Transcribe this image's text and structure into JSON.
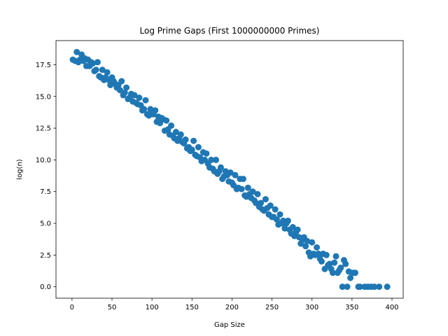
{
  "chart_data": {
    "type": "scatter",
    "title": "Log Prime Gaps (First 1000000000 Primes)",
    "xlabel": "Gap Size",
    "ylabel": "log(n)",
    "xlim": [
      -20,
      414
    ],
    "ylim": [
      -0.9,
      19.4
    ],
    "xticks": [
      0,
      50,
      100,
      150,
      200,
      250,
      300,
      350,
      400
    ],
    "yticks": [
      0.0,
      2.5,
      5.0,
      7.5,
      10.0,
      12.5,
      15.0,
      17.5
    ],
    "xtick_labels": [
      "0",
      "50",
      "100",
      "150",
      "200",
      "250",
      "300",
      "350",
      "400"
    ],
    "ytick_labels": [
      "0.0",
      "2.5",
      "5.0",
      "7.5",
      "10.0",
      "12.5",
      "15.0",
      "17.5"
    ],
    "grid": false,
    "marker_color": "#1f77b4",
    "points": [
      [
        1,
        17.9
      ],
      [
        4,
        17.8
      ],
      [
        6,
        18.5
      ],
      [
        8,
        17.7
      ],
      [
        10,
        17.9
      ],
      [
        12,
        18.3
      ],
      [
        14,
        17.8
      ],
      [
        16,
        18.0
      ],
      [
        18,
        17.4
      ],
      [
        20,
        17.9
      ],
      [
        22,
        17.4
      ],
      [
        24,
        17.7
      ],
      [
        26,
        17.6
      ],
      [
        28,
        17.0
      ],
      [
        30,
        17.1
      ],
      [
        32,
        17.7
      ],
      [
        34,
        16.6
      ],
      [
        36,
        16.5
      ],
      [
        38,
        17.1
      ],
      [
        40,
        16.3
      ],
      [
        42,
        16.5
      ],
      [
        44,
        16.9
      ],
      [
        46,
        16.3
      ],
      [
        48,
        15.9
      ],
      [
        50,
        16.5
      ],
      [
        52,
        16.2
      ],
      [
        54,
        16.0
      ],
      [
        56,
        15.7
      ],
      [
        58,
        15.9
      ],
      [
        60,
        15.5
      ],
      [
        62,
        16.2
      ],
      [
        64,
        15.1
      ],
      [
        66,
        15.3
      ],
      [
        68,
        15.7
      ],
      [
        70,
        14.8
      ],
      [
        72,
        14.9
      ],
      [
        74,
        15.2
      ],
      [
        76,
        14.6
      ],
      [
        78,
        15.1
      ],
      [
        80,
        14.5
      ],
      [
        82,
        14.4
      ],
      [
        84,
        14.9
      ],
      [
        86,
        14.3
      ],
      [
        88,
        13.9
      ],
      [
        90,
        14.0
      ],
      [
        92,
        14.7
      ],
      [
        94,
        13.6
      ],
      [
        96,
        13.5
      ],
      [
        98,
        14.0
      ],
      [
        100,
        13.6
      ],
      [
        102,
        13.6
      ],
      [
        104,
        13.9
      ],
      [
        106,
        13.0
      ],
      [
        108,
        13.4
      ],
      [
        110,
        12.9
      ],
      [
        112,
        13.3
      ],
      [
        114,
        13.2
      ],
      [
        116,
        12.3
      ],
      [
        118,
        13.1
      ],
      [
        120,
        12.4
      ],
      [
        122,
        12.0
      ],
      [
        124,
        12.7
      ],
      [
        126,
        11.9
      ],
      [
        128,
        11.7
      ],
      [
        130,
        12.2
      ],
      [
        132,
        11.5
      ],
      [
        134,
        11.7
      ],
      [
        136,
        12.0
      ],
      [
        138,
        11.4
      ],
      [
        140,
        11.3
      ],
      [
        142,
        11.6
      ],
      [
        144,
        10.9
      ],
      [
        146,
        11.0
      ],
      [
        148,
        10.7
      ],
      [
        150,
        10.8
      ],
      [
        152,
        11.5
      ],
      [
        154,
        10.4
      ],
      [
        156,
        10.3
      ],
      [
        158,
        11.0
      ],
      [
        160,
        10.2
      ],
      [
        162,
        9.9
      ],
      [
        164,
        10.6
      ],
      [
        166,
        10.0
      ],
      [
        168,
        10.5
      ],
      [
        170,
        9.7
      ],
      [
        172,
        9.4
      ],
      [
        174,
        10.0
      ],
      [
        176,
        9.3
      ],
      [
        178,
        9.1
      ],
      [
        180,
        10.0
      ],
      [
        182,
        8.9
      ],
      [
        184,
        9.1
      ],
      [
        186,
        9.4
      ],
      [
        188,
        8.5
      ],
      [
        190,
        8.7
      ],
      [
        192,
        9.1
      ],
      [
        194,
        8.8
      ],
      [
        196,
        8.3
      ],
      [
        198,
        9.0
      ],
      [
        200,
        8.2
      ],
      [
        202,
        8.0
      ],
      [
        204,
        8.8
      ],
      [
        206,
        7.7
      ],
      [
        208,
        7.8
      ],
      [
        210,
        8.5
      ],
      [
        212,
        7.7
      ],
      [
        214,
        8.5
      ],
      [
        216,
        7.2
      ],
      [
        218,
        7.1
      ],
      [
        220,
        7.8
      ],
      [
        222,
        7.3
      ],
      [
        224,
        7.0
      ],
      [
        226,
        7.5
      ],
      [
        228,
        6.8
      ],
      [
        230,
        6.6
      ],
      [
        232,
        7.3
      ],
      [
        234,
        6.3
      ],
      [
        236,
        6.6
      ],
      [
        238,
        6.1
      ],
      [
        240,
        6.0
      ],
      [
        242,
        6.9
      ],
      [
        244,
        6.2
      ],
      [
        246,
        5.7
      ],
      [
        248,
        6.4
      ],
      [
        250,
        5.5
      ],
      [
        252,
        5.5
      ],
      [
        254,
        6.1
      ],
      [
        256,
        5.3
      ],
      [
        258,
        4.9
      ],
      [
        260,
        5.7
      ],
      [
        262,
        5.0
      ],
      [
        264,
        5.2
      ],
      [
        266,
        4.6
      ],
      [
        268,
        5.0
      ],
      [
        270,
        5.2
      ],
      [
        272,
        4.5
      ],
      [
        274,
        4.2
      ],
      [
        276,
        4.7
      ],
      [
        278,
        4.0
      ],
      [
        280,
        4.3
      ],
      [
        282,
        4.5
      ],
      [
        284,
        3.9
      ],
      [
        286,
        3.4
      ],
      [
        288,
        3.7
      ],
      [
        290,
        3.9
      ],
      [
        292,
        3.2
      ],
      [
        294,
        3.6
      ],
      [
        296,
        2.7
      ],
      [
        298,
        2.4
      ],
      [
        300,
        3.5
      ],
      [
        302,
        2.6
      ],
      [
        304,
        2.5
      ],
      [
        306,
        3.1
      ],
      [
        308,
        2.6
      ],
      [
        310,
        2.2
      ],
      [
        312,
        2.0
      ],
      [
        314,
        2.6
      ],
      [
        316,
        1.4
      ],
      [
        318,
        2.5
      ],
      [
        320,
        1.7
      ],
      [
        322,
        1.8
      ],
      [
        324,
        1.4
      ],
      [
        326,
        1.1
      ],
      [
        328,
        1.9
      ],
      [
        330,
        2.4
      ],
      [
        332,
        1.1
      ],
      [
        334,
        1.3
      ],
      [
        336,
        1.5
      ],
      [
        338,
        0.0
      ],
      [
        340,
        2.1
      ],
      [
        342,
        1.8
      ],
      [
        344,
        0.0
      ],
      [
        346,
        1.2
      ],
      [
        348,
        0.7
      ],
      [
        350,
        1.1
      ],
      [
        352,
        1.1
      ],
      [
        354,
        1.1
      ],
      [
        358,
        0.0
      ],
      [
        360,
        0.0
      ],
      [
        366,
        0.0
      ],
      [
        370,
        0.0
      ],
      [
        374,
        0.0
      ],
      [
        378,
        0.0
      ],
      [
        384,
        0.0
      ],
      [
        394,
        0.0
      ]
    ]
  }
}
